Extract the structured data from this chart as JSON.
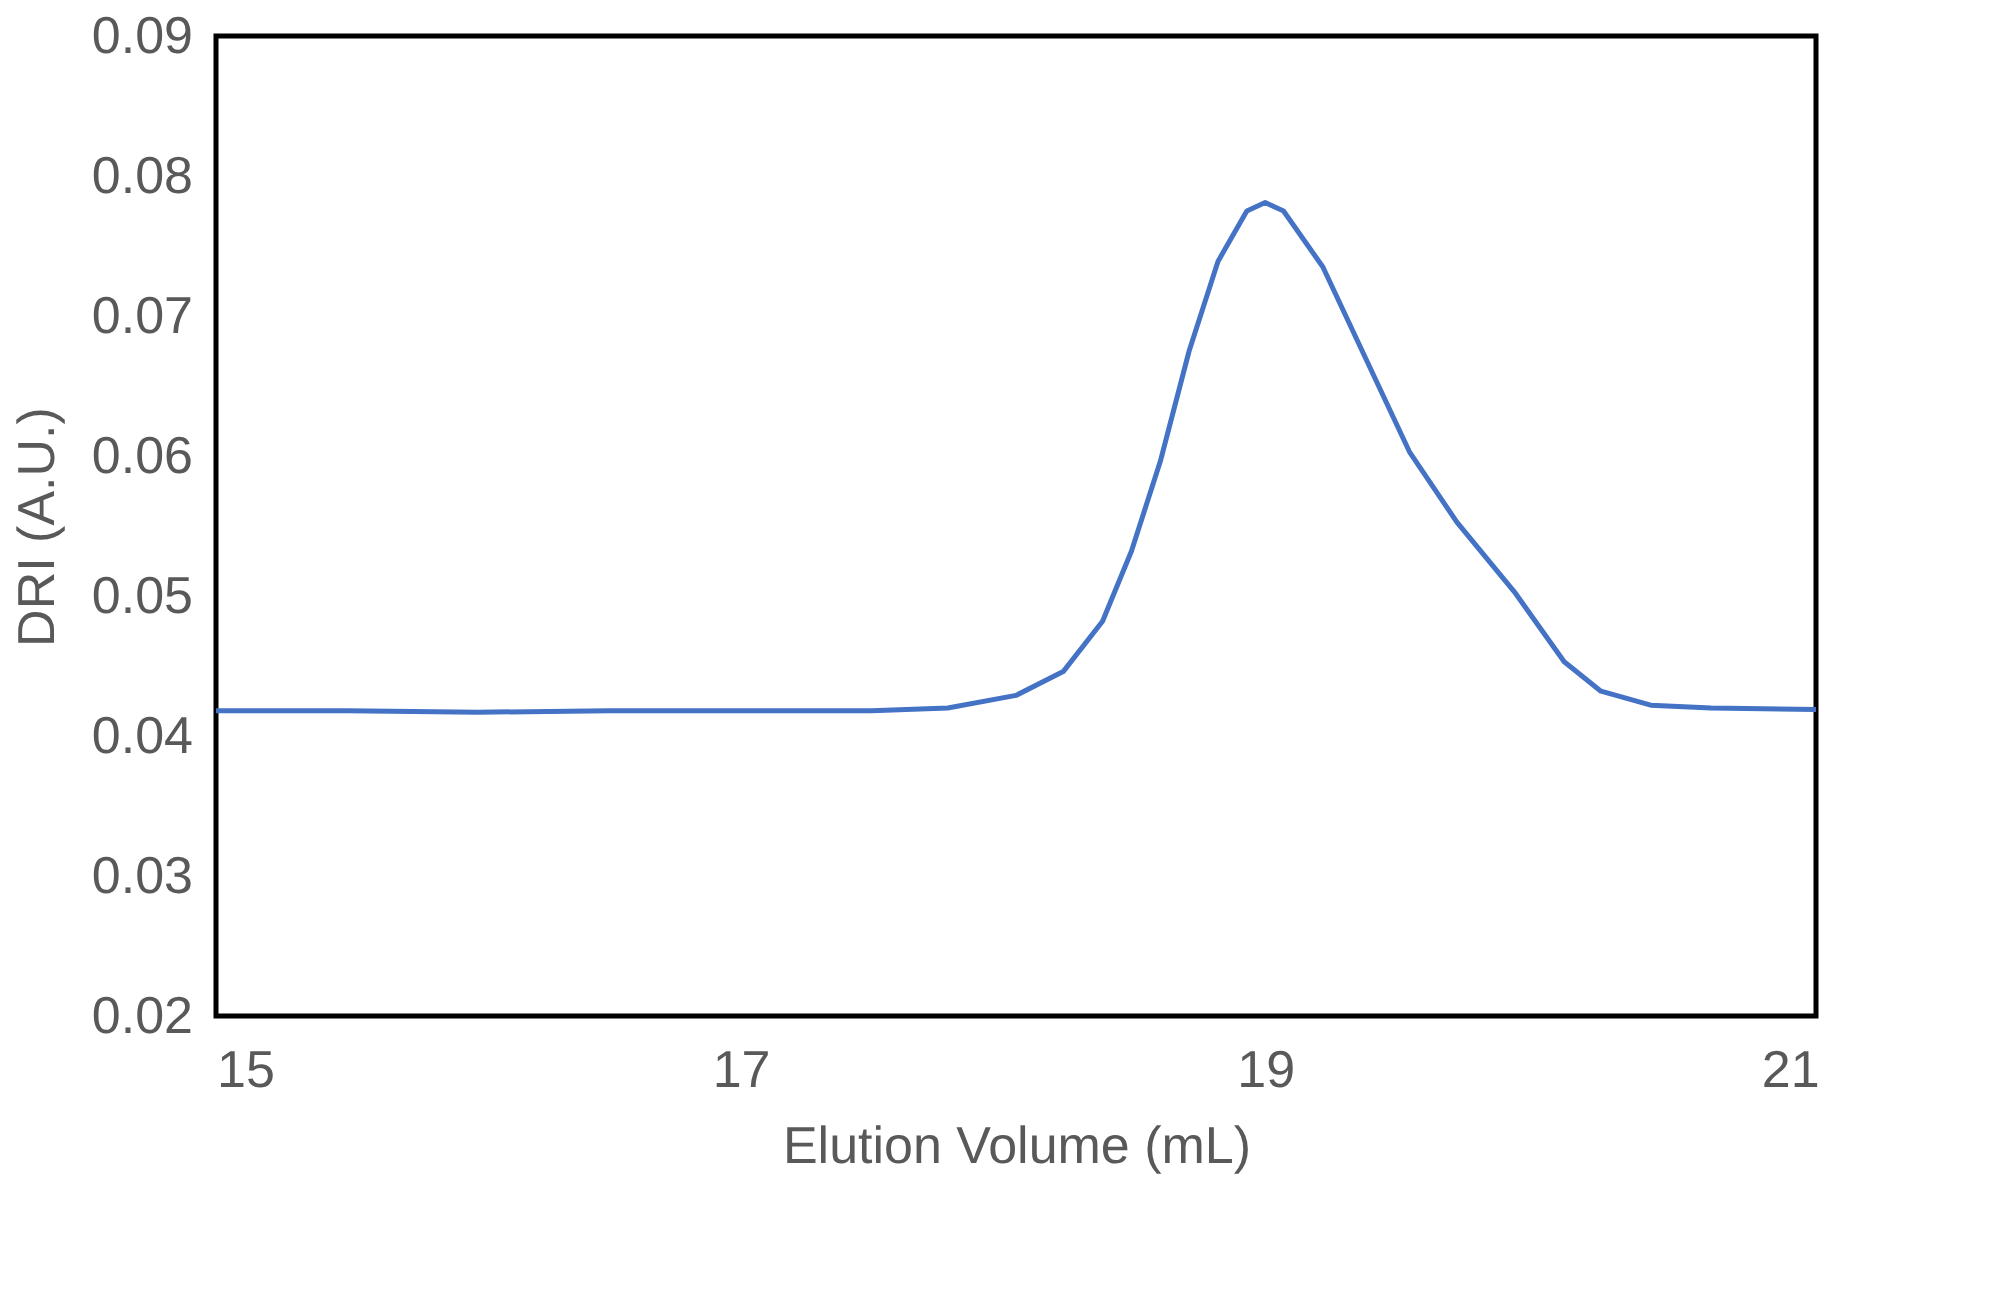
{
  "chart_data": {
    "type": "line",
    "xlabel": "Elution Volume (mL)",
    "ylabel": "DRI (A.U.)",
    "x": [
      15,
      15.5,
      16,
      16.5,
      17,
      17.5,
      17.79,
      18.05,
      18.23,
      18.38,
      18.49,
      18.6,
      18.71,
      18.82,
      18.93,
      19.0,
      19.07,
      19.22,
      19.37,
      19.55,
      19.73,
      19.95,
      20.14,
      20.28,
      20.47,
      20.7,
      21.1
    ],
    "series": [
      {
        "color": "#4472c4",
        "values": [
          0.0418,
          0.0418,
          0.0417,
          0.0418,
          0.0418,
          0.0418,
          0.042,
          0.0429,
          0.0446,
          0.0482,
          0.0532,
          0.0596,
          0.0675,
          0.0739,
          0.0775,
          0.0781,
          0.0775,
          0.0735,
          0.0675,
          0.0603,
          0.0553,
          0.0503,
          0.0453,
          0.0432,
          0.0422,
          0.042,
          0.0419
        ]
      }
    ],
    "xlim": [
      15,
      21.1
    ],
    "xticks": [
      15,
      17,
      19,
      21
    ],
    "ylim": [
      0.02,
      0.09
    ],
    "yticks": [
      0.02,
      0.03,
      0.04,
      0.05,
      0.06,
      0.07,
      0.08,
      0.09
    ],
    "grid": false,
    "legend": false,
    "marker": "none",
    "line_style": "solid"
  }
}
